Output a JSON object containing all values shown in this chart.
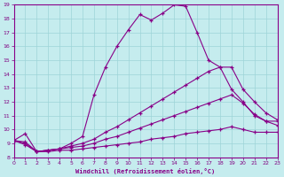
{
  "xlabel": "Windchill (Refroidissement éolien,°C)",
  "xlim": [
    0,
    23
  ],
  "ylim": [
    8,
    19
  ],
  "yticks": [
    8,
    9,
    10,
    11,
    12,
    13,
    14,
    15,
    16,
    17,
    18,
    19
  ],
  "xticks": [
    0,
    1,
    2,
    3,
    4,
    5,
    6,
    7,
    8,
    9,
    10,
    11,
    12,
    13,
    14,
    15,
    16,
    17,
    18,
    19,
    20,
    21,
    22,
    23
  ],
  "background_color": "#c5ecee",
  "line_color": "#880088",
  "grid_color": "#9dd4d8",
  "lines": [
    {
      "x": [
        0,
        1,
        2,
        3,
        4,
        5,
        6,
        7,
        8,
        9,
        10,
        11,
        12,
        13,
        14,
        15,
        16,
        17,
        18,
        19,
        20,
        21,
        22,
        23
      ],
      "y": [
        9.2,
        9.7,
        8.4,
        8.5,
        8.6,
        9.0,
        9.5,
        12.5,
        14.5,
        16.0,
        17.2,
        18.3,
        17.9,
        18.4,
        19.0,
        18.9,
        17.0,
        15.0,
        14.5,
        12.9,
        12.0,
        11.0,
        10.6,
        10.6
      ]
    },
    {
      "x": [
        0,
        1,
        2,
        3,
        4,
        5,
        6,
        7,
        8,
        9,
        10,
        11,
        12,
        13,
        14,
        15,
        16,
        17,
        18,
        19,
        20,
        21,
        22,
        23
      ],
      "y": [
        9.2,
        9.1,
        8.4,
        8.5,
        8.6,
        8.8,
        9.0,
        9.3,
        9.8,
        10.2,
        10.7,
        11.2,
        11.7,
        12.2,
        12.7,
        13.2,
        13.7,
        14.2,
        14.5,
        14.5,
        12.9,
        12.0,
        11.2,
        10.7
      ]
    },
    {
      "x": [
        0,
        1,
        2,
        3,
        4,
        5,
        6,
        7,
        8,
        9,
        10,
        11,
        12,
        13,
        14,
        15,
        16,
        17,
        18,
        19,
        20,
        21,
        22,
        23
      ],
      "y": [
        9.2,
        9.0,
        8.4,
        8.5,
        8.6,
        8.7,
        8.8,
        9.0,
        9.3,
        9.5,
        9.8,
        10.1,
        10.4,
        10.7,
        11.0,
        11.3,
        11.6,
        11.9,
        12.2,
        12.5,
        11.9,
        11.1,
        10.6,
        10.3
      ]
    },
    {
      "x": [
        0,
        1,
        2,
        3,
        4,
        5,
        6,
        7,
        8,
        9,
        10,
        11,
        12,
        13,
        14,
        15,
        16,
        17,
        18,
        19,
        20,
        21,
        22,
        23
      ],
      "y": [
        9.2,
        8.9,
        8.4,
        8.4,
        8.5,
        8.5,
        8.6,
        8.7,
        8.8,
        8.9,
        9.0,
        9.1,
        9.3,
        9.4,
        9.5,
        9.7,
        9.8,
        9.9,
        10.0,
        10.2,
        10.0,
        9.8,
        9.8,
        9.8
      ]
    }
  ]
}
